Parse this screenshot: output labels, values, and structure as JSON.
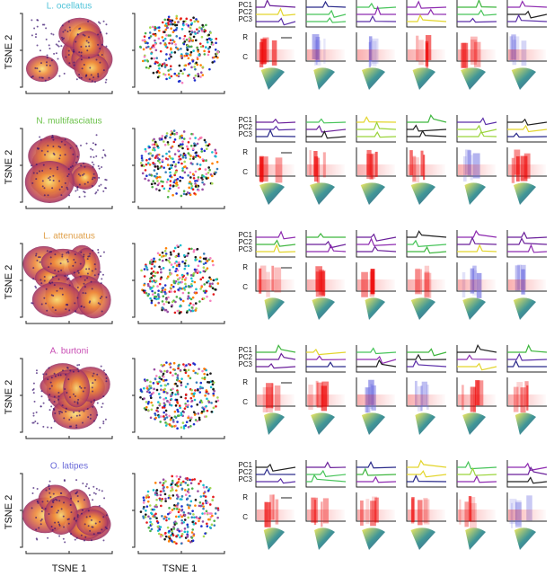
{
  "rows": [
    {
      "species": "L. ocellatus",
      "color": "#4fc3d9",
      "y_axis_label": "TSNE 2",
      "pc_labels": [
        "PC1",
        "PC2",
        "PC3"
      ],
      "rc_labels": [
        "R",
        "C"
      ]
    },
    {
      "species": "N. multifasciatus",
      "color": "#6cc24a",
      "y_axis_label": "TSNE 2",
      "pc_labels": [
        "PC1",
        "PC2",
        "PC3"
      ],
      "rc_labels": [
        "R",
        "C"
      ]
    },
    {
      "species": "L. attenuatus",
      "color": "#e0a04a",
      "y_axis_label": "TSNE 2",
      "pc_labels": [
        "PC1",
        "PC2",
        "PC3"
      ],
      "rc_labels": [
        "R",
        "C"
      ]
    },
    {
      "species": "A. burtoni",
      "color": "#c94fb5",
      "y_axis_label": "TSNE 2",
      "pc_labels": [
        "PC1",
        "PC2",
        "PC3"
      ],
      "rc_labels": [
        "R",
        "C"
      ]
    },
    {
      "species": "O. latipes",
      "color": "#6a6ad8",
      "y_axis_label": "TSNE 2",
      "pc_labels": [
        "PC1",
        "PC2",
        "PC3"
      ],
      "rc_labels": [
        "R",
        "C"
      ]
    }
  ],
  "x_axis_labels": [
    "TSNE 1",
    "TSNE 1"
  ]
}
